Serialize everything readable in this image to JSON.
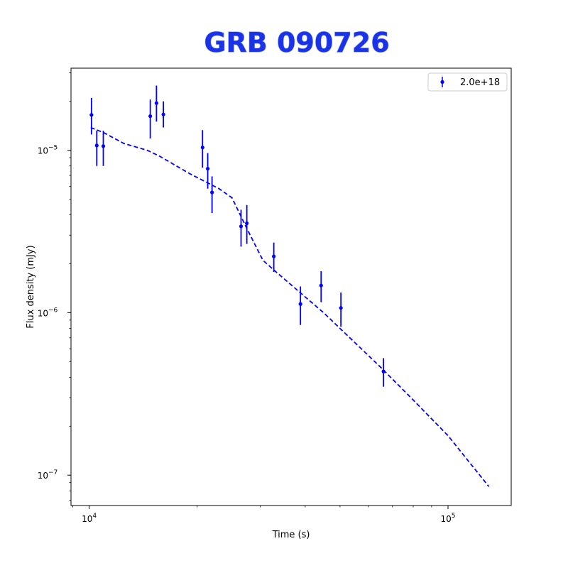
{
  "chart_data": {
    "type": "scatter",
    "title": "GRB 090726",
    "xlabel": "Time (s)",
    "ylabel": "Flux density (mJy)",
    "xscale": "log",
    "yscale": "log",
    "xlim": [
      8900,
      150000
    ],
    "ylim": [
      6.5e-08,
      3.2e-05
    ],
    "grid": false,
    "legend_position": "top-right",
    "x_ticks": [
      {
        "value": 10000,
        "base": "10",
        "exp": "4"
      },
      {
        "value": 100000,
        "base": "10",
        "exp": "5"
      }
    ],
    "y_ticks": [
      {
        "value": 1e-07,
        "base": "10",
        "exp": "−7"
      },
      {
        "value": 1e-06,
        "base": "10",
        "exp": "−6"
      },
      {
        "value": 1e-05,
        "base": "10",
        "exp": "−5"
      }
    ],
    "colors": {
      "series": "#0000ff",
      "title": "#1a33e6"
    },
    "series": [
      {
        "name": "2.0e+18",
        "marker": "circle",
        "errorbars": true,
        "points": [
          {
            "x": 10150,
            "y": 1.65e-05,
            "ylo": 1.25e-05,
            "yhi": 2.1e-05
          },
          {
            "x": 10500,
            "y": 1.07e-05,
            "ylo": 8e-06,
            "yhi": 1.32e-05
          },
          {
            "x": 10950,
            "y": 1.06e-05,
            "ylo": 8e-06,
            "yhi": 1.32e-05
          },
          {
            "x": 14800,
            "y": 1.62e-05,
            "ylo": 1.18e-05,
            "yhi": 2.05e-05
          },
          {
            "x": 15400,
            "y": 1.95e-05,
            "ylo": 1.5e-05,
            "yhi": 2.5e-05
          },
          {
            "x": 16100,
            "y": 1.66e-05,
            "ylo": 1.38e-05,
            "yhi": 2e-05
          },
          {
            "x": 20700,
            "y": 1.04e-05,
            "ylo": 7.8e-06,
            "yhi": 1.33e-05
          },
          {
            "x": 21400,
            "y": 7.7e-06,
            "ylo": 5.8e-06,
            "yhi": 9.6e-06
          },
          {
            "x": 22000,
            "y": 5.5e-06,
            "ylo": 4.1e-06,
            "yhi": 6.9e-06
          },
          {
            "x": 26500,
            "y": 3.4e-06,
            "ylo": 2.55e-06,
            "yhi": 4.3e-06
          },
          {
            "x": 27500,
            "y": 3.55e-06,
            "ylo": 2.65e-06,
            "yhi": 4.6e-06
          },
          {
            "x": 32700,
            "y": 2.22e-06,
            "ylo": 1.78e-06,
            "yhi": 2.7e-06
          },
          {
            "x": 38800,
            "y": 1.13e-06,
            "ylo": 8.4e-07,
            "yhi": 1.45e-06
          },
          {
            "x": 44300,
            "y": 1.47e-06,
            "ylo": 1.16e-06,
            "yhi": 1.8e-06
          },
          {
            "x": 50300,
            "y": 1.07e-06,
            "ylo": 8.2e-07,
            "yhi": 1.33e-06
          },
          {
            "x": 66100,
            "y": 4.35e-07,
            "ylo": 3.5e-07,
            "yhi": 5.25e-07
          }
        ]
      },
      {
        "style": "dashed",
        "points": [
          {
            "x": 10100,
            "y": 1.38e-05
          },
          {
            "x": 11000,
            "y": 1.28e-05
          },
          {
            "x": 12500,
            "y": 1.1e-05
          },
          {
            "x": 14500,
            "y": 1e-05
          },
          {
            "x": 15700,
            "y": 9.2e-06
          },
          {
            "x": 19000,
            "y": 7.2e-06
          },
          {
            "x": 23000,
            "y": 5.8e-06
          },
          {
            "x": 25000,
            "y": 5.1e-06
          },
          {
            "x": 27500,
            "y": 3.3e-06
          },
          {
            "x": 30500,
            "y": 2.1e-06
          },
          {
            "x": 33000,
            "y": 1.8e-06
          },
          {
            "x": 45000,
            "y": 1e-06
          },
          {
            "x": 65000,
            "y": 4.6e-07
          },
          {
            "x": 80000,
            "y": 2.9e-07
          },
          {
            "x": 100000,
            "y": 1.75e-07
          },
          {
            "x": 130000,
            "y": 8.5e-08
          }
        ]
      }
    ]
  }
}
